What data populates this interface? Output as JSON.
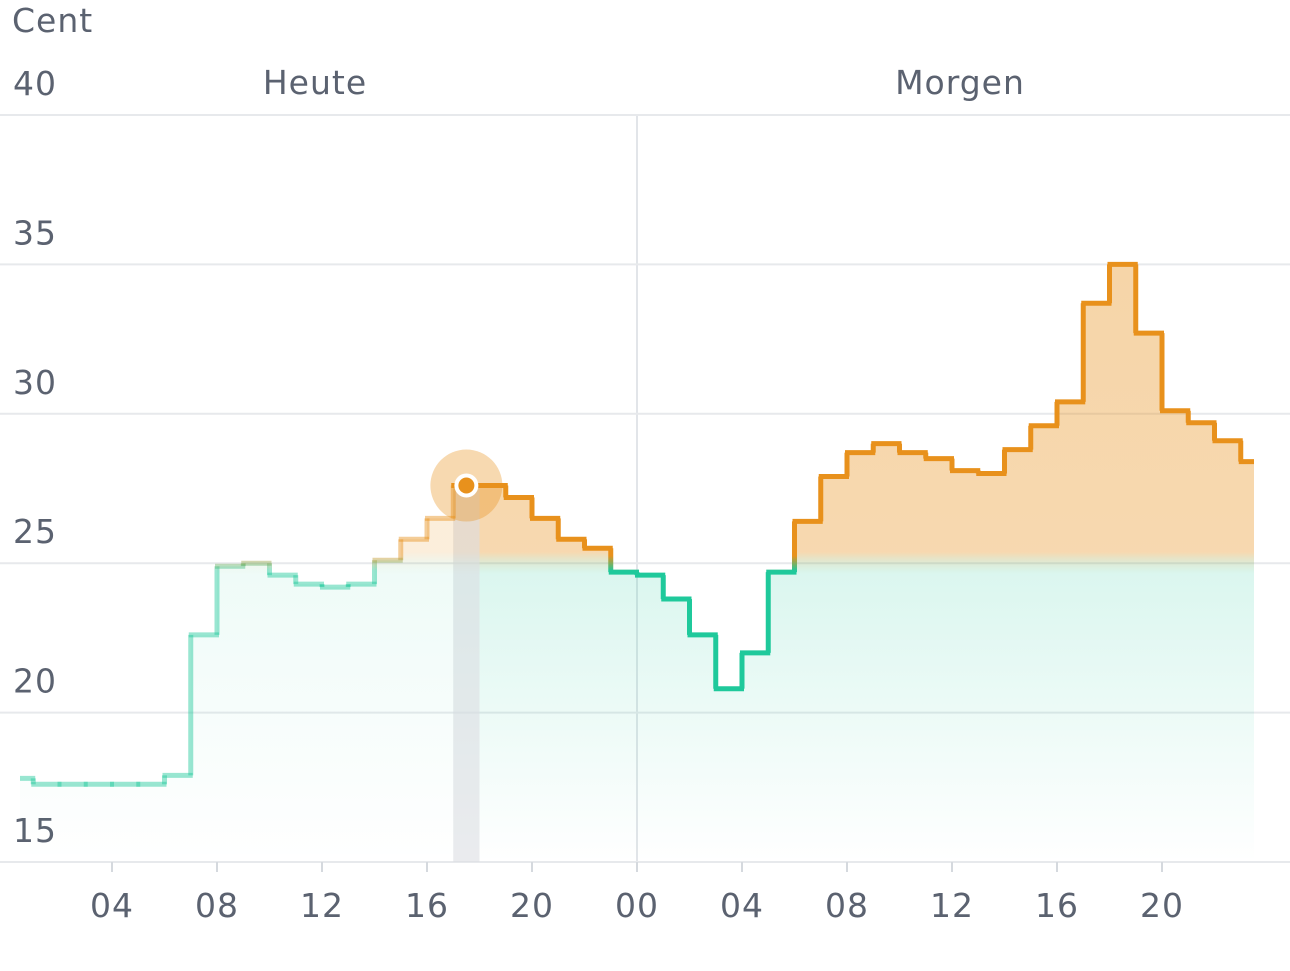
{
  "chart_data": {
    "type": "step",
    "y_label": "Cent",
    "annotations": [
      "Heute",
      "Morgen"
    ],
    "x": [
      0,
      1,
      2,
      3,
      4,
      5,
      6,
      7,
      8,
      9,
      10,
      11,
      12,
      13,
      14,
      15,
      16,
      17,
      18,
      19,
      20,
      21,
      22,
      23,
      24,
      25,
      26,
      27,
      28,
      29,
      30,
      31,
      32,
      33,
      34,
      35,
      36,
      37,
      38,
      39,
      40,
      41,
      42,
      43,
      44,
      45,
      46,
      47
    ],
    "values": [
      17.8,
      17.6,
      17.6,
      17.6,
      17.6,
      17.6,
      17.9,
      22.6,
      24.9,
      25.0,
      24.6,
      24.3,
      24.2,
      24.3,
      25.1,
      25.8,
      26.5,
      27.6,
      27.6,
      27.2,
      26.5,
      25.8,
      25.5,
      24.7,
      24.6,
      23.8,
      22.6,
      20.8,
      22.0,
      24.7,
      26.4,
      27.9,
      28.7,
      29.0,
      28.7,
      28.5,
      28.1,
      28.0,
      28.8,
      29.6,
      30.4,
      33.7,
      35.0,
      32.7,
      30.1,
      29.7,
      29.1,
      28.4
    ],
    "highlight": 17,
    "xlim": [
      0,
      48
    ],
    "xticks": [
      {
        "value": 4,
        "label": "04"
      },
      {
        "value": 8,
        "label": "08"
      },
      12,
      16,
      20,
      {
        "value": 24,
        "label": "00"
      },
      {
        "value": 28,
        "label": "04"
      },
      {
        "value": 32,
        "label": "08"
      },
      {
        "value": 36,
        "label": "12"
      },
      {
        "value": 40,
        "label": "16"
      },
      {
        "value": 44,
        "label": "20"
      }
    ],
    "ylim": [
      15,
      40
    ],
    "yticks": [
      15,
      20,
      25,
      30,
      35,
      40
    ],
    "colors": {
      "high": "#e8911c",
      "low": "#1fc99b"
    },
    "grid": true
  }
}
